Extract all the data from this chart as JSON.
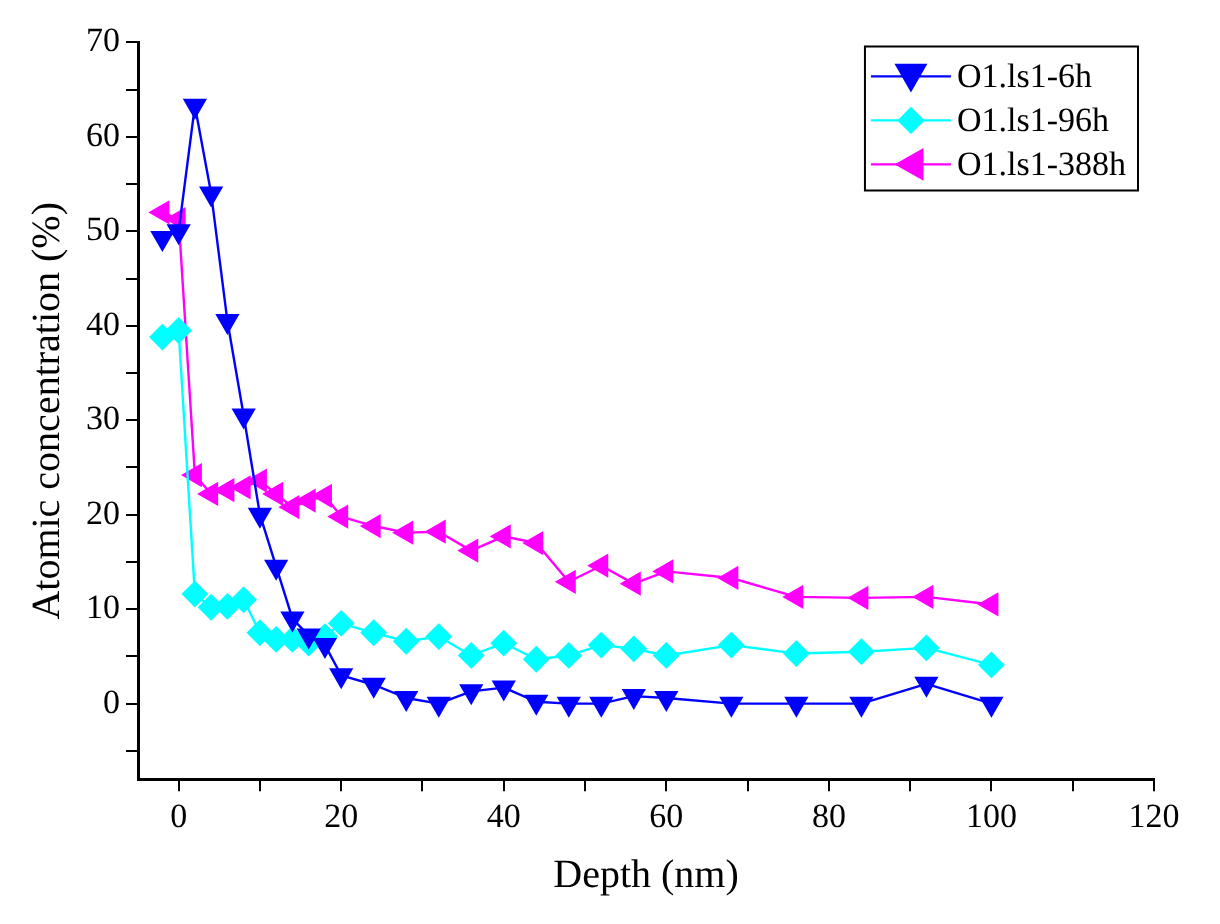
{
  "chart_data": {
    "type": "line",
    "xlabel": "Depth (nm)",
    "ylabel": "Atomic concentration (%)",
    "x": [
      -2,
      0,
      2,
      4,
      6,
      8,
      10,
      12,
      14,
      16,
      18,
      20,
      24,
      28,
      32,
      36,
      40,
      44,
      48,
      52,
      56,
      60,
      68,
      76,
      84,
      92,
      100
    ],
    "series": [
      {
        "name": "O1.ls1-6h",
        "color": "#0000ff",
        "marker": "triangle_down",
        "values": [
          49.3,
          50,
          63.3,
          54,
          40.5,
          30.5,
          20,
          14.5,
          9,
          7.2,
          6.2,
          3,
          2,
          0.6,
          0,
          1.3,
          1.7,
          0.2,
          0,
          0,
          0.8,
          0.6,
          0,
          0,
          0,
          2.1,
          0
        ]
      },
      {
        "name": "O1.ls1-96h",
        "color": "#00ffff",
        "marker": "diamond",
        "values": [
          38.8,
          39.5,
          11.6,
          10.2,
          10.3,
          11,
          7.5,
          6.8,
          6.8,
          6.4,
          7.1,
          8.5,
          7.5,
          6.6,
          7.1,
          5.1,
          6.4,
          4.7,
          5.1,
          6.2,
          5.8,
          5.1,
          6.2,
          5.3,
          5.5,
          5.9,
          4.1
        ]
      },
      {
        "name": "O1.ls1-388h",
        "color": "#ff00ff",
        "marker": "triangle_left",
        "values": [
          52,
          51.3,
          24.2,
          22.2,
          22.6,
          22.9,
          23.6,
          22.2,
          20.8,
          21.5,
          22,
          19.8,
          18.8,
          18.1,
          18.2,
          16.2,
          17.7,
          17,
          12.9,
          14.6,
          12.7,
          14,
          13.3,
          11.3,
          11.2,
          11.3,
          10.5
        ]
      }
    ],
    "xlim": [
      -5,
      120
    ],
    "ylim": [
      -8,
      70
    ],
    "xticks": [
      0,
      {
        "value": 10,
        "label": null
      },
      20,
      {
        "value": 30,
        "label": null
      },
      40,
      {
        "value": 50,
        "label": null
      },
      60,
      {
        "value": 70,
        "label": null
      },
      80,
      {
        "value": 90,
        "label": null
      },
      100,
      {
        "value": 110,
        "label": null
      },
      120
    ],
    "yticks": [
      {
        "value": -5,
        "label": null
      },
      0,
      {
        "value": 5,
        "label": null
      },
      10,
      {
        "value": 15,
        "label": null
      },
      20,
      {
        "value": 25,
        "label": null
      },
      30,
      {
        "value": 35,
        "label": null
      },
      40,
      {
        "value": 45,
        "label": null
      },
      50,
      {
        "value": 55,
        "label": null
      },
      60,
      {
        "value": 65,
        "label": null
      },
      70
    ],
    "grid": false,
    "legend": "top right",
    "line_style": "solid"
  }
}
